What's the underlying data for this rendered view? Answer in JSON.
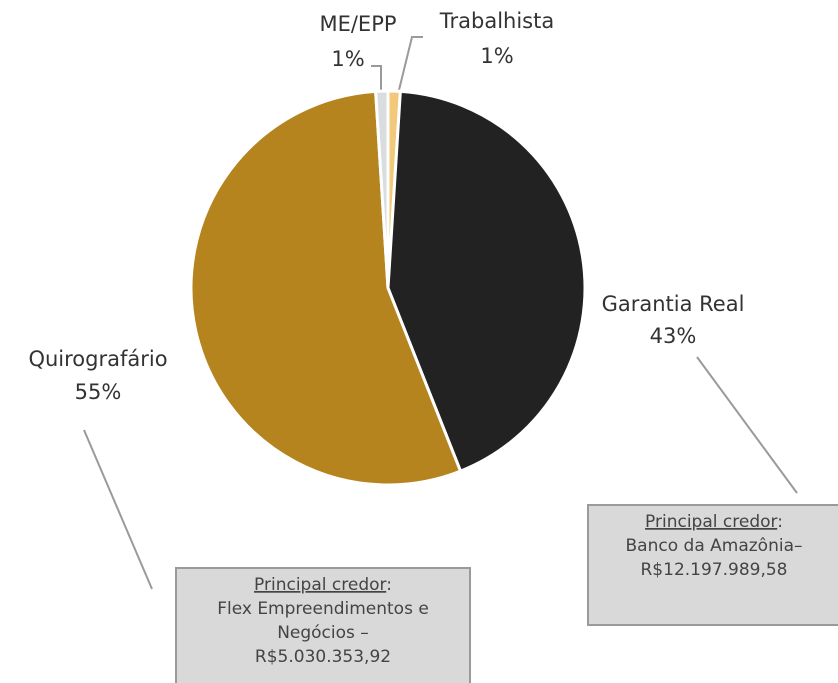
{
  "chart_data": {
    "type": "pie",
    "categories": [
      "Trabalhista",
      "Garantia Real",
      "Quirografário",
      "ME/EPP"
    ],
    "values": [
      1,
      43,
      55,
      1
    ],
    "value_labels": [
      "1%",
      "43%",
      "55%",
      "1%"
    ],
    "colors": [
      "#f2c97a",
      "#222222",
      "#b5841f",
      "#d9dde0"
    ],
    "annotations": [
      {
        "label": "Principal credor",
        "suffix": ":",
        "lines": [
          "Flex Empreendimentos e",
          "Negócios –",
          "R$5.030.353,92"
        ]
      },
      {
        "label": "Principal credor",
        "suffix": ":",
        "lines": [
          "Banco da Amazônia–",
          "R$12.197.989,58"
        ]
      }
    ]
  }
}
